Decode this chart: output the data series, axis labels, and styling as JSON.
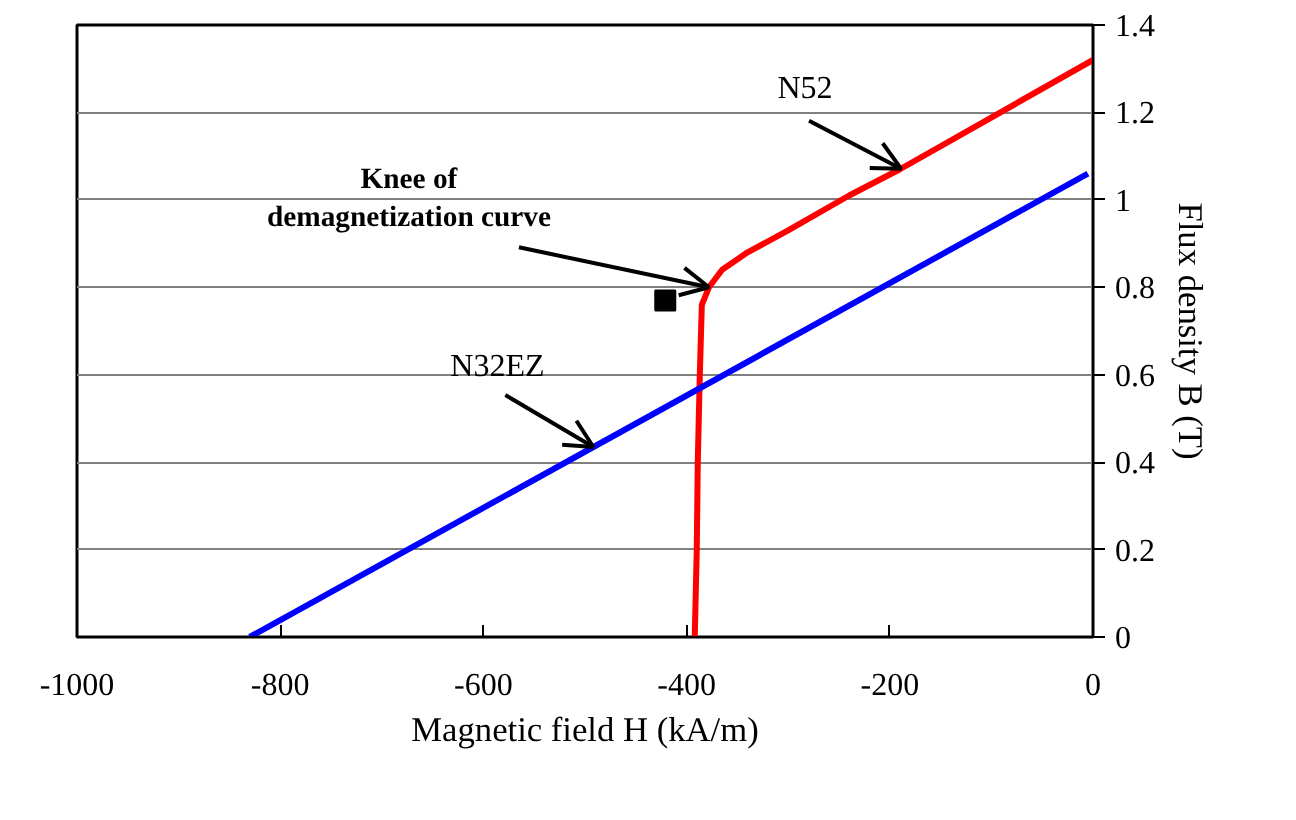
{
  "chart_data": {
    "type": "line",
    "xlabel": "Magnetic field H (kA/m)",
    "ylabel": "Flux density B (T)",
    "xlim": [
      -1000,
      0
    ],
    "xticks": [
      -1000,
      -800,
      -600,
      -400,
      -200,
      0
    ],
    "ylim": [
      0,
      1.4
    ],
    "yticks": [
      0,
      0.2,
      0.4,
      0.6,
      0.8,
      1,
      1.2,
      1.4
    ],
    "grid": "y",
    "marker": "none",
    "line_style": "solid",
    "series": [
      {
        "name": "N52",
        "color": "#ff0000",
        "x": [
          -392,
          -390,
          -389,
          -387,
          -385,
          -378,
          -365,
          -340,
          -300,
          -240,
          -190,
          0
        ],
        "values": [
          0,
          0.2,
          0.4,
          0.6,
          0.76,
          0.8,
          0.84,
          0.88,
          0.93,
          1.01,
          1.07,
          1.32
        ]
      },
      {
        "name": "N32EZ",
        "color": "#0000ff",
        "x": [
          -830,
          -5
        ],
        "values": [
          0,
          1.06
        ]
      },
      {
        "type": "scatter",
        "marker": "square",
        "color": "#000000",
        "x": [
          -421
        ],
        "values": [
          0.77
        ]
      }
    ],
    "annotations": [
      {
        "text": "Knee of\ndemagnetization curve",
        "x": -378,
        "y": 0.8
      }
    ]
  }
}
